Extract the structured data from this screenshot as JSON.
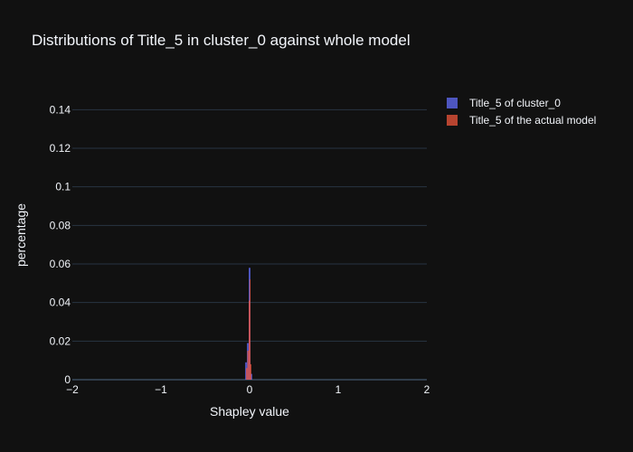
{
  "chart_data": {
    "type": "bar",
    "title": "Distributions of Title_5 in cluster_0 against whole model",
    "xlabel": "Shapley value",
    "ylabel": "percentage",
    "xlim": [
      -2,
      2
    ],
    "ylim": [
      0,
      0.15
    ],
    "x_ticks": [
      -2,
      -1,
      0,
      1,
      2
    ],
    "x_tick_labels": [
      "−2",
      "−1",
      "0",
      "1",
      "2"
    ],
    "y_ticks": [
      0,
      0.02,
      0.04,
      0.06,
      0.08,
      0.1,
      0.12,
      0.14
    ],
    "y_tick_labels": [
      "0",
      "0.02",
      "0.04",
      "0.06",
      "0.08",
      "0.1",
      "0.12",
      "0.14"
    ],
    "grid": true,
    "legend_position": "top-right",
    "series": [
      {
        "name": "Title_5 of cluster_0",
        "color": "#636efa",
        "bins": [
          {
            "x0": -0.05,
            "x1": -0.03,
            "y": 0.009
          },
          {
            "x0": -0.03,
            "x1": -0.01,
            "y": 0.019
          },
          {
            "x0": -0.01,
            "x1": 0.01,
            "y": 0.058
          },
          {
            "x0": 0.01,
            "x1": 0.03,
            "y": 0.003
          }
        ]
      },
      {
        "name": "Title_5 of the actual model",
        "color": "#ef553b",
        "bins": [
          {
            "x0": -0.04,
            "x1": -0.025,
            "y": 0.006
          },
          {
            "x0": -0.025,
            "x1": -0.01,
            "y": 0.015
          },
          {
            "x0": -0.01,
            "x1": 0.0,
            "y": 0.041
          },
          {
            "x0": 0.0,
            "x1": 0.008,
            "y": 0.052
          },
          {
            "x0": 0.008,
            "x1": 0.02,
            "y": 0.008
          }
        ]
      }
    ]
  }
}
